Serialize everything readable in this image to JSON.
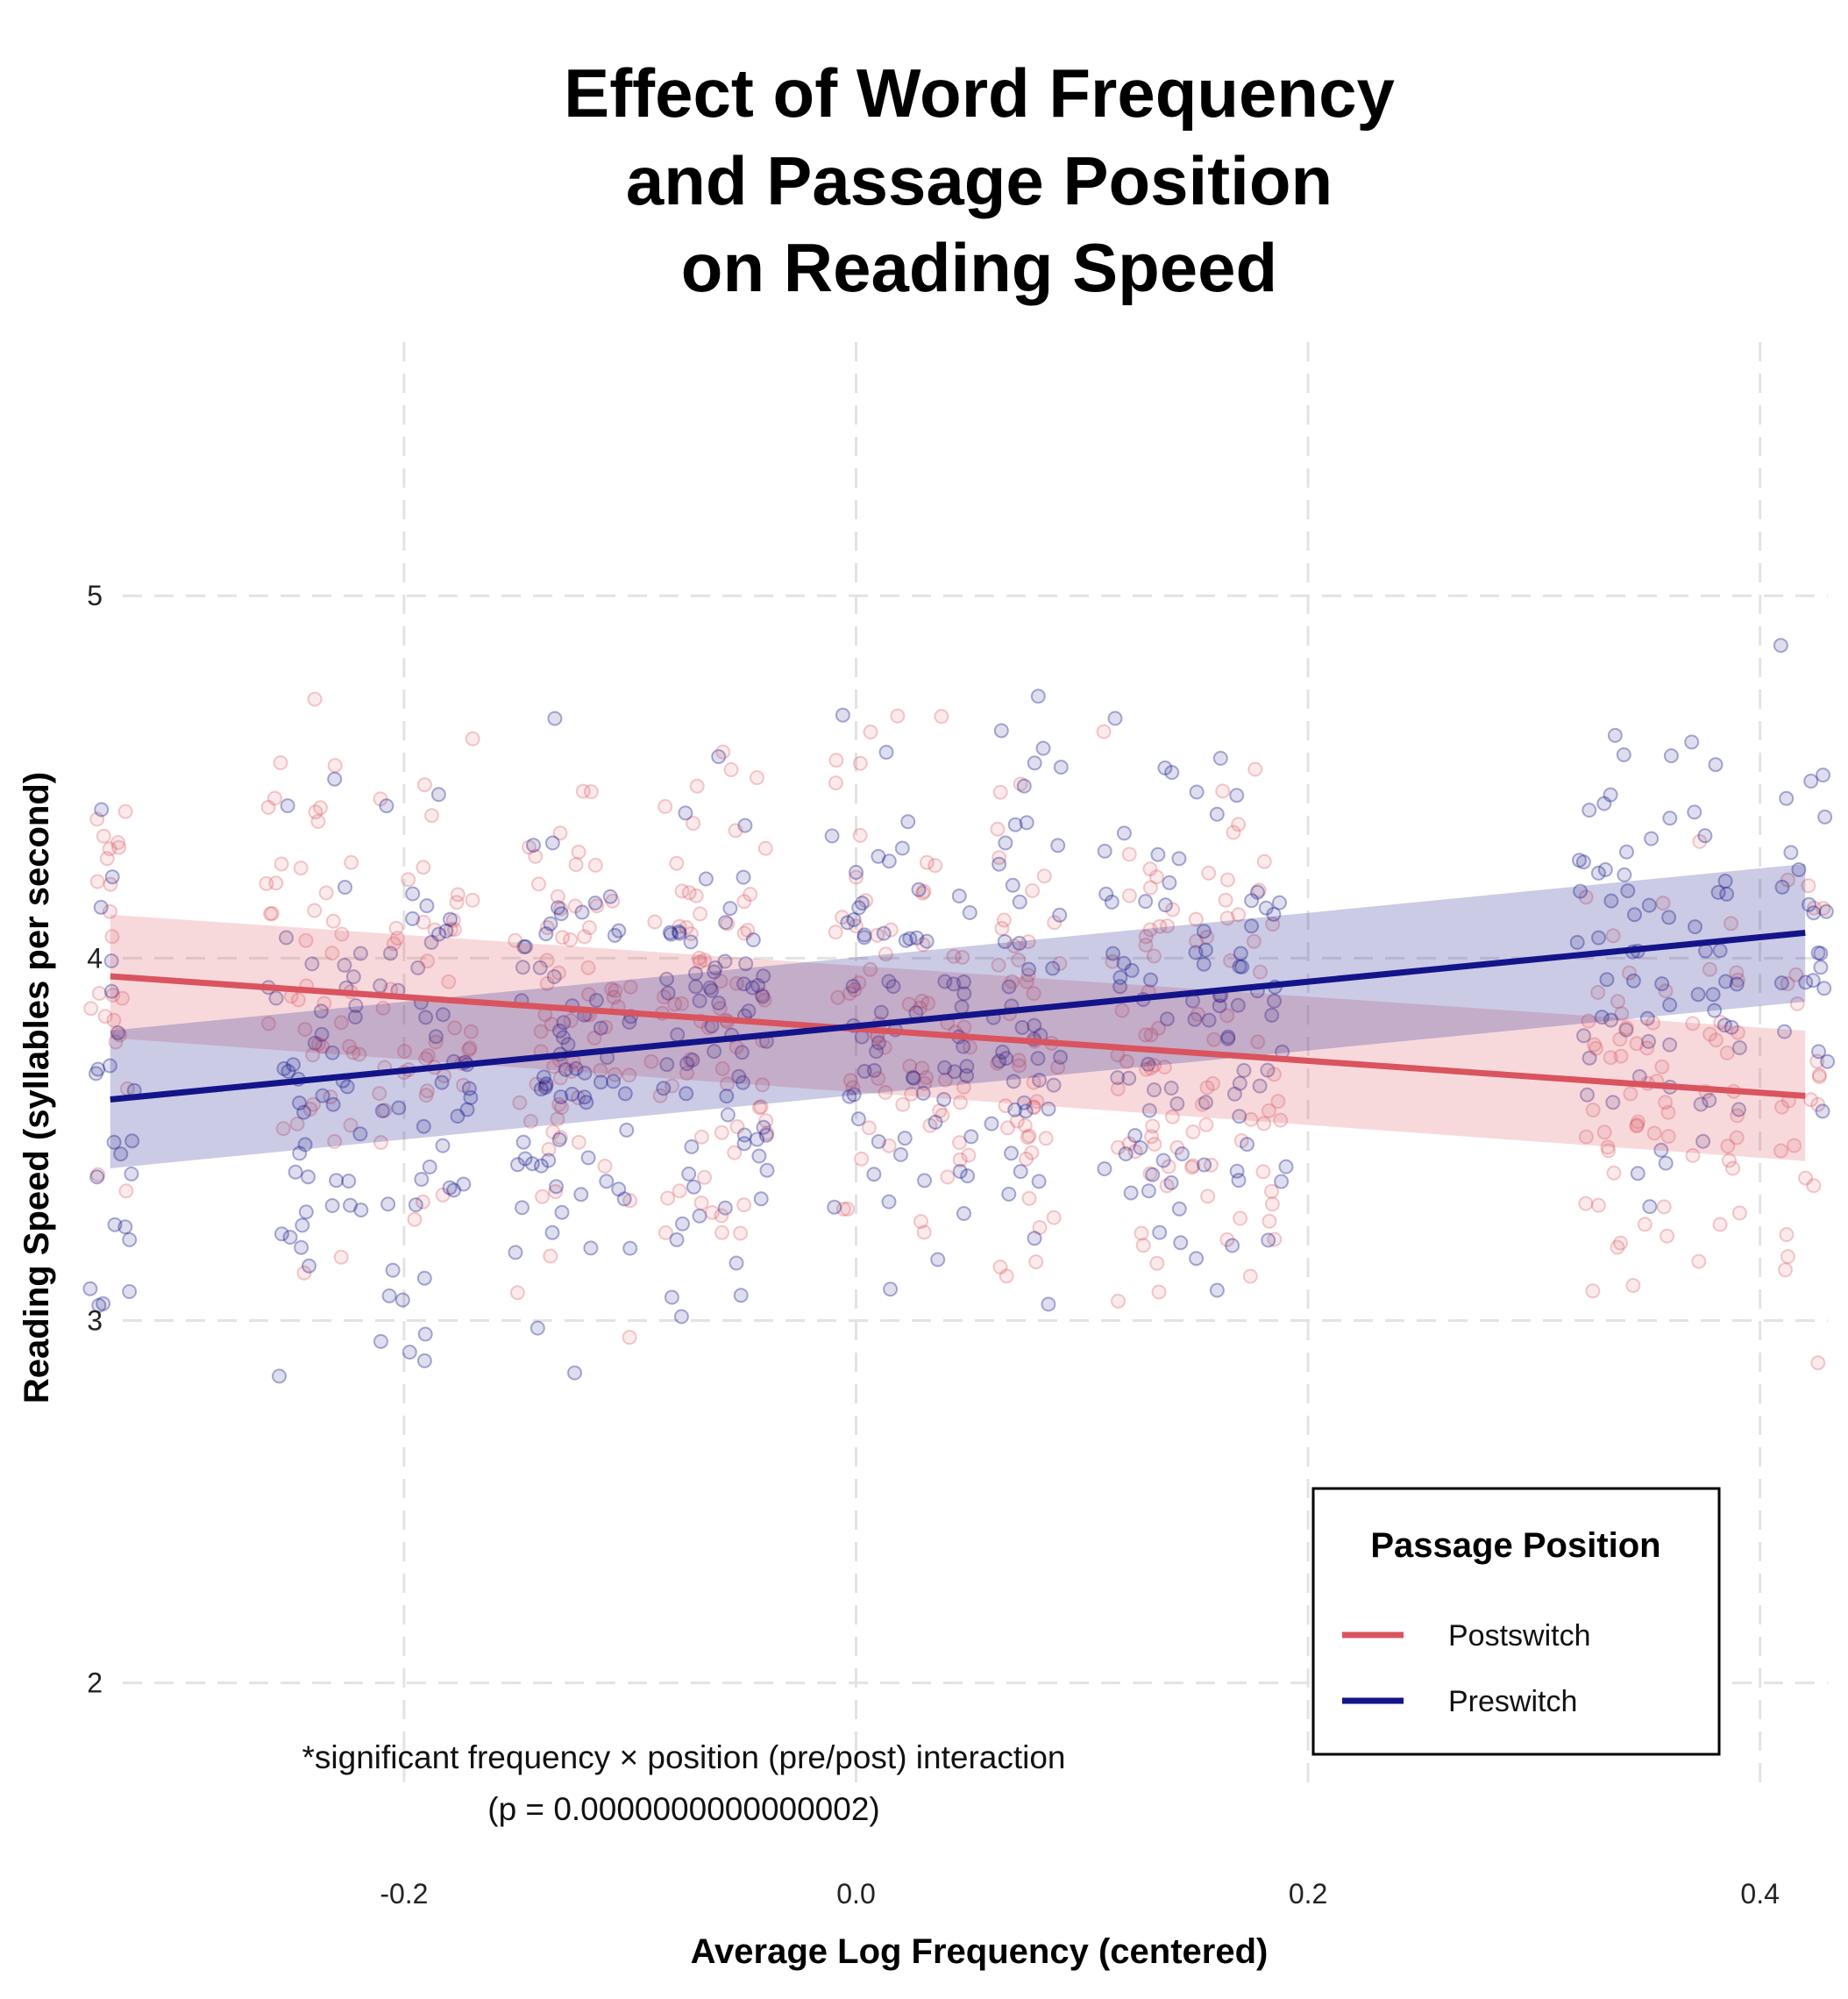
{
  "chart_data": {
    "type": "scatter",
    "title": [
      "Effect of Word Frequency",
      "and Passage Position",
      "on Reading Speed"
    ],
    "xlabel": "Average Log Frequency (centered)",
    "ylabel": "Reading Speed (syllables per second)",
    "xlim": [
      -0.34,
      0.43
    ],
    "ylim": [
      1.9,
      5.7
    ],
    "x_ticks": [
      "-0.2",
      "0.0",
      "0.2",
      "0.4"
    ],
    "y_ticks": [
      "2",
      "3",
      "4",
      "5"
    ],
    "grid": true,
    "legend": {
      "title": "Passage Position",
      "placement": "bottom-right",
      "entries": [
        "Postswitch",
        "Preswitch"
      ]
    },
    "annotation": [
      "*significant frequency × position (pre/post) interaction",
      "(p = 0.0000000000000002)"
    ],
    "point_clusters_x": [
      -0.33,
      -0.25,
      -0.23,
      -0.2,
      -0.18,
      -0.14,
      -0.13,
      -0.11,
      -0.08,
      -0.06,
      -0.05,
      0.0,
      0.02,
      0.04,
      0.07,
      0.08,
      0.12,
      0.14,
      0.16,
      0.18,
      0.33,
      0.35,
      0.38,
      0.42
    ],
    "series": [
      {
        "name": "Postswitch",
        "color": "#d9545e",
        "fit": {
          "x": [
            -0.33,
            0.42
          ],
          "y": [
            3.95,
            3.62
          ]
        },
        "ci_lower": [
          3.78,
          3.44
        ],
        "ci_upper": [
          4.12,
          3.8
        ]
      },
      {
        "name": "Preswitch",
        "color": "#14148a",
        "fit": {
          "x": [
            -0.33,
            0.42
          ],
          "y": [
            3.61,
            4.07
          ]
        },
        "ci_lower": [
          3.42,
          3.88
        ],
        "ci_upper": [
          3.8,
          4.26
        ]
      }
    ]
  }
}
